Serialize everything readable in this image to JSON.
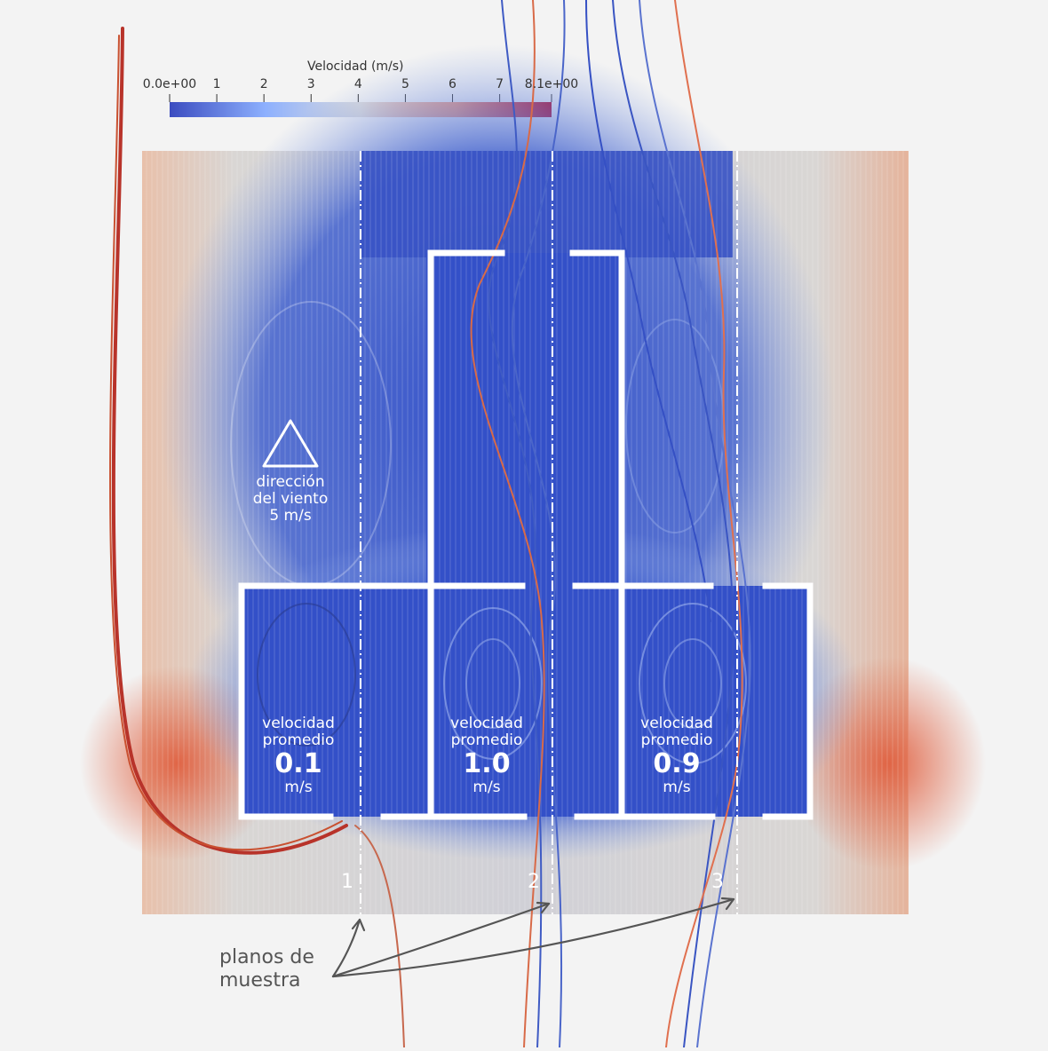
{
  "colorbar": {
    "title": "Velocidad (m/s)",
    "ticks": [
      "0.0e+00",
      "1",
      "2",
      "3",
      "4",
      "5",
      "6",
      "7",
      "8.1e+00"
    ],
    "range": [
      0,
      8.1
    ],
    "colors": [
      "#3b4cc0",
      "#8db0fe",
      "#dddcdc",
      "#f49a7b",
      "#b40426"
    ]
  },
  "wind": {
    "icon": "triangle-icon",
    "line1": "dirección",
    "line2": "del viento",
    "line3": "5 m/s"
  },
  "rooms": [
    {
      "line1": "velocidad",
      "line2": "promedio",
      "value": "0.1",
      "unit": "m/s"
    },
    {
      "line1": "velocidad",
      "line2": "promedio",
      "value": "1.0",
      "unit": "m/s"
    },
    {
      "line1": "velocidad",
      "line2": "promedio",
      "value": "0.9",
      "unit": "m/s"
    }
  ],
  "planes": [
    "1",
    "2",
    "3"
  ],
  "annotation": {
    "line1": "planos de",
    "line2": "muestra"
  },
  "colors": {
    "background": "#f3f3f3",
    "slow": "#3b4cc0",
    "fast": "#b40426",
    "walls": "#ffffff",
    "annotation": "#555555"
  }
}
